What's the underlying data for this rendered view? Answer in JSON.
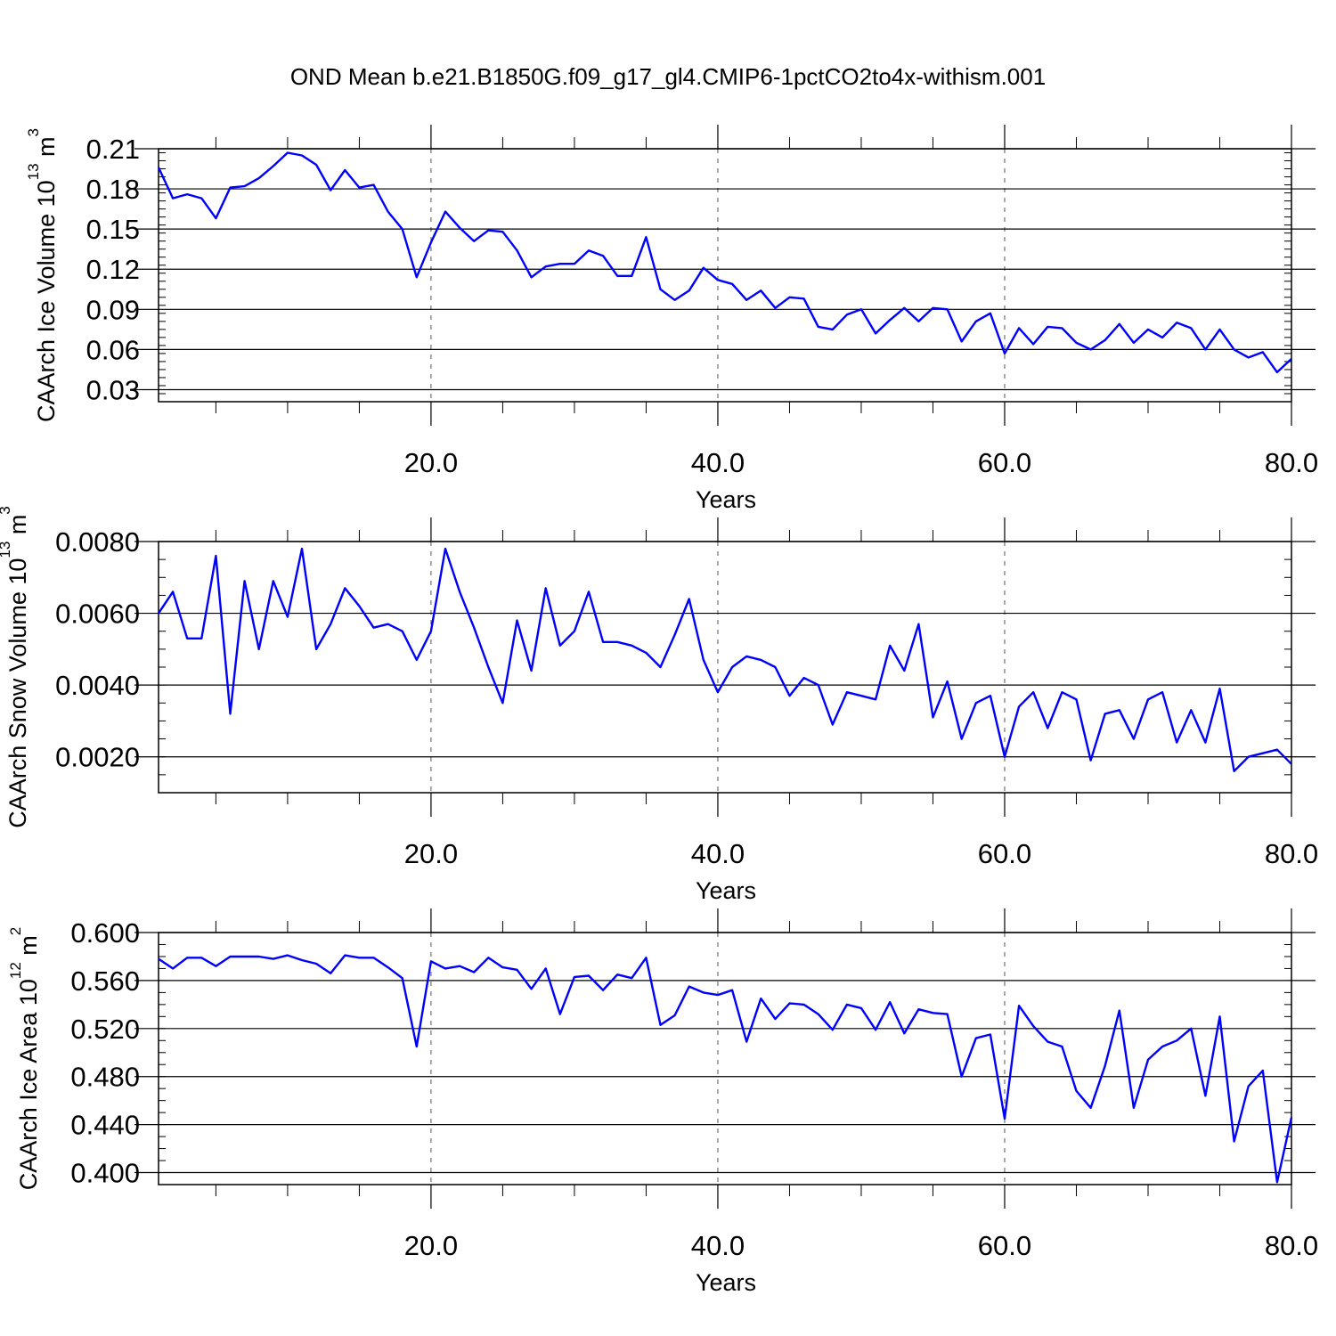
{
  "figure": {
    "title": "OND Mean b.e21.B1850G.f09_g17_gl4.CMIP6-1pctCO2to4x-withism.001"
  },
  "colors": {
    "line": "#0000ff",
    "axis": "#000000",
    "grid": "#555555",
    "background": "#ffffff"
  },
  "chart_data": [
    {
      "type": "line",
      "xlabel": "Years",
      "ylabel_base": "CAArch Ice Volume 10",
      "ylabel_exp1": "13",
      "ylabel_unit": " m",
      "ylabel_exp2": "3",
      "xlim": [
        1,
        80
      ],
      "ylim": [
        0.021,
        0.21
      ],
      "xticks": [
        20,
        40,
        60,
        80
      ],
      "xtick_labels": [
        "20.0",
        "40.0",
        "60.0",
        "80.0"
      ],
      "yticks": [
        0.03,
        0.06,
        0.09,
        0.12,
        0.15,
        0.18,
        0.21
      ],
      "ytick_labels": [
        "0.03",
        "0.06",
        "0.09",
        "0.12",
        "0.15",
        "0.18",
        "0.21"
      ],
      "y_minor_step": 0.006,
      "grid": "dashed vertical at major x ticks",
      "series": [
        {
          "x_start": 1,
          "values": [
            0.196,
            0.173,
            0.176,
            0.173,
            0.158,
            0.181,
            0.182,
            0.188,
            0.197,
            0.207,
            0.205,
            0.198,
            0.179,
            0.194,
            0.181,
            0.183,
            0.163,
            0.15,
            0.114,
            0.14,
            0.163,
            0.151,
            0.141,
            0.149,
            0.148,
            0.134,
            0.114,
            0.122,
            0.124,
            0.124,
            0.134,
            0.13,
            0.115,
            0.115,
            0.144,
            0.105,
            0.097,
            0.104,
            0.121,
            0.112,
            0.109,
            0.097,
            0.104,
            0.091,
            0.099,
            0.098,
            0.077,
            0.075,
            0.086,
            0.09,
            0.072,
            0.082,
            0.091,
            0.081,
            0.091,
            0.09,
            0.066,
            0.081,
            0.087,
            0.057,
            0.076,
            0.064,
            0.077,
            0.076,
            0.065,
            0.06,
            0.067,
            0.079,
            0.065,
            0.075,
            0.069,
            0.08,
            0.076,
            0.06,
            0.075,
            0.06,
            0.054,
            0.058,
            0.043,
            0.053
          ]
        }
      ]
    },
    {
      "type": "line",
      "xlabel": "Years",
      "ylabel_base": "CAArch Snow Volume 10",
      "ylabel_exp1": "13",
      "ylabel_unit": " m",
      "ylabel_exp2": "3",
      "xlim": [
        1,
        80
      ],
      "ylim": [
        0.001,
        0.008
      ],
      "xticks": [
        20,
        40,
        60,
        80
      ],
      "xtick_labels": [
        "20.0",
        "40.0",
        "60.0",
        "80.0"
      ],
      "yticks": [
        0.002,
        0.004,
        0.006,
        0.008
      ],
      "ytick_labels": [
        "0.0020",
        "0.0040",
        "0.0060",
        "0.0080"
      ],
      "y_minor_step": 0.0005,
      "grid": "dashed vertical at major x ticks",
      "series": [
        {
          "x_start": 1,
          "values": [
            0.006,
            0.0066,
            0.0053,
            0.0053,
            0.0076,
            0.0032,
            0.0069,
            0.005,
            0.0069,
            0.0059,
            0.0078,
            0.005,
            0.0057,
            0.0067,
            0.0062,
            0.0056,
            0.0057,
            0.0055,
            0.0047,
            0.0055,
            0.0078,
            0.0066,
            0.0056,
            0.0045,
            0.0035,
            0.0058,
            0.0044,
            0.0067,
            0.0051,
            0.0055,
            0.0066,
            0.0052,
            0.0052,
            0.0051,
            0.0049,
            0.0045,
            0.0054,
            0.0064,
            0.0047,
            0.0038,
            0.0045,
            0.0048,
            0.0047,
            0.0045,
            0.0037,
            0.0042,
            0.004,
            0.0029,
            0.0038,
            0.0037,
            0.0036,
            0.0051,
            0.0044,
            0.0057,
            0.0031,
            0.0041,
            0.0025,
            0.0035,
            0.0037,
            0.002,
            0.0034,
            0.0038,
            0.0028,
            0.0038,
            0.0036,
            0.0019,
            0.0032,
            0.0033,
            0.0025,
            0.0036,
            0.0038,
            0.0024,
            0.0033,
            0.0024,
            0.0039,
            0.0016,
            0.002,
            0.0021,
            0.0022,
            0.0018
          ]
        }
      ]
    },
    {
      "type": "line",
      "xlabel": "Years",
      "ylabel_base": "CAArch Ice Area 10",
      "ylabel_exp1": "12",
      "ylabel_unit": " m",
      "ylabel_exp2": "2",
      "xlim": [
        1,
        80
      ],
      "ylim": [
        0.39,
        0.6
      ],
      "xticks": [
        20,
        40,
        60,
        80
      ],
      "xtick_labels": [
        "20.0",
        "40.0",
        "60.0",
        "80.0"
      ],
      "yticks": [
        0.4,
        0.44,
        0.48,
        0.52,
        0.56,
        0.6
      ],
      "ytick_labels": [
        "0.400",
        "0.440",
        "0.480",
        "0.520",
        "0.560",
        "0.600"
      ],
      "y_minor_step": 0.01,
      "grid": "dashed vertical at major x ticks",
      "series": [
        {
          "x_start": 1,
          "values": [
            0.578,
            0.57,
            0.579,
            0.579,
            0.572,
            0.58,
            0.58,
            0.58,
            0.578,
            0.581,
            0.577,
            0.574,
            0.566,
            0.581,
            0.579,
            0.579,
            0.571,
            0.562,
            0.505,
            0.576,
            0.57,
            0.572,
            0.567,
            0.579,
            0.571,
            0.569,
            0.553,
            0.57,
            0.532,
            0.563,
            0.564,
            0.552,
            0.565,
            0.562,
            0.579,
            0.523,
            0.531,
            0.555,
            0.55,
            0.548,
            0.552,
            0.509,
            0.545,
            0.528,
            0.541,
            0.54,
            0.532,
            0.519,
            0.54,
            0.537,
            0.519,
            0.542,
            0.516,
            0.536,
            0.533,
            0.532,
            0.48,
            0.512,
            0.515,
            0.445,
            0.539,
            0.522,
            0.509,
            0.505,
            0.468,
            0.454,
            0.489,
            0.535,
            0.454,
            0.494,
            0.505,
            0.51,
            0.52,
            0.464,
            0.53,
            0.426,
            0.472,
            0.485,
            0.392,
            0.446
          ]
        }
      ]
    }
  ]
}
